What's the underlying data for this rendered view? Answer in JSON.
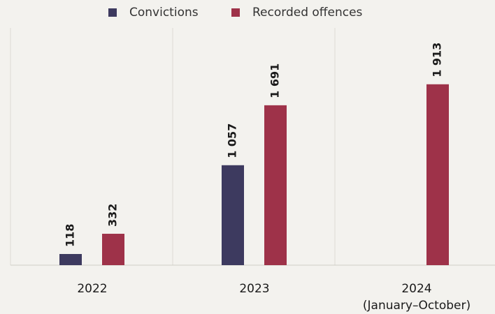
{
  "chart_data": {
    "type": "bar",
    "categories": [
      "2022",
      "2023",
      "2024"
    ],
    "category_notes": [
      null,
      null,
      "(January–October)"
    ],
    "series": [
      {
        "name": "Convictions",
        "color": "#3d3a5f",
        "values": [
          118,
          1057,
          null
        ],
        "value_labels": [
          "118",
          "1 057",
          null
        ]
      },
      {
        "name": "Recorded offences",
        "color": "#9e3249",
        "values": [
          332,
          1691,
          1913
        ],
        "value_labels": [
          "332",
          "1 691",
          "1 913"
        ]
      }
    ],
    "ylim": [
      0,
      2000
    ]
  }
}
